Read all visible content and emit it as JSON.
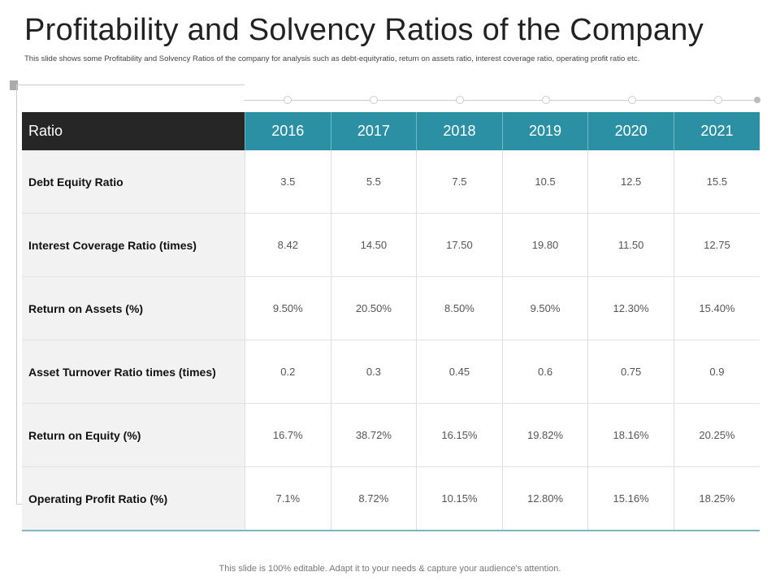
{
  "title": "Profitability and Solvency Ratios of the Company",
  "subtitle": "This slide shows some Profitability and Solvency Ratios of the company for analysis such as debt-equityratio, return on assets ratio, interest coverage ratio, operating profit ratio etc.",
  "colors": {
    "header": "#2b90a4",
    "first_header": "#262626",
    "label_bg": "#f2f2f2"
  },
  "table": {
    "header": [
      "Ratio",
      "2016",
      "2017",
      "2018",
      "2019",
      "2020",
      "2021"
    ],
    "rows": [
      {
        "label": "Debt Equity Ratio",
        "values": [
          "3.5",
          "5.5",
          "7.5",
          "10.5",
          "12.5",
          "15.5"
        ]
      },
      {
        "label": "Interest  Coverage Ratio (times)",
        "values": [
          "8.42",
          "14.50",
          "17.50",
          "19.80",
          "11.50",
          "12.75"
        ]
      },
      {
        "label": "Return on Assets  (%)",
        "values": [
          "9.50%",
          "20.50%",
          "8.50%",
          "9.50%",
          "12.30%",
          "15.40%"
        ]
      },
      {
        "label": "Asset Turnover Ratio times (times)",
        "values": [
          "0.2",
          "0.3",
          "0.45",
          "0.6",
          "0.75",
          "0.9"
        ]
      },
      {
        "label": "Return on Equity (%)",
        "values": [
          "16.7%",
          "38.72%",
          "16.15%",
          "19.82%",
          "18.16%",
          "20.25%"
        ]
      },
      {
        "label": "Operating Profit Ratio (%)",
        "values": [
          "7.1%",
          "8.72%",
          "10.15%",
          "12.80%",
          "15.16%",
          "18.25%"
        ]
      }
    ]
  },
  "footer": "This slide is 100% editable. Adapt it to your needs & capture your audience's attention."
}
